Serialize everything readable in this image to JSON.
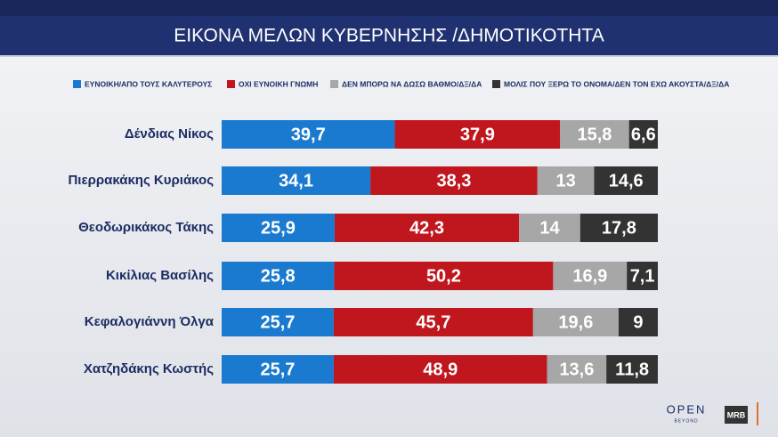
{
  "chart_data": {
    "type": "stacked-bar-horizontal",
    "title": "ΕΙΚΟΝΑ ΜΕΛΩΝ ΚΥΒΕΡΝΗΣΗΣ /ΔΗΜΟΤΙΚΟΤΗΤΑ",
    "categories": [
      "Δένδιας Νίκος",
      "Πιερρακάκης Κυριάκος",
      "Θεοδωρικάκος Τάκης",
      "Κικίλιας Βασίλης",
      "Κεφαλογιάννη Όλγα",
      "Χατζηδάκης Κωστής"
    ],
    "series": [
      {
        "name": "ΕΥΝΟΙΚΗ/ΑΠΟ ΤΟΥΣ ΚΑΛΥΤΕΡΟΥΣ",
        "color": "#1a7ad0",
        "values": [
          39.7,
          34.1,
          25.9,
          25.8,
          25.7,
          25.7
        ],
        "value_labels": [
          "39,7",
          "34,1",
          "25,9",
          "25,8",
          "25,7",
          "25,7"
        ]
      },
      {
        "name": "ΟΧΙ ΕΥΝΟΙΚΗ ΓΝΩΜΗ",
        "color": "#c0161d",
        "values": [
          37.9,
          38.3,
          42.3,
          50.2,
          45.7,
          48.9
        ],
        "value_labels": [
          "37,9",
          "38,3",
          "42,3",
          "50,2",
          "45,7",
          "48,9"
        ]
      },
      {
        "name": "ΔΕΝ ΜΠΟΡΩ ΝΑ ΔΩΣΩ ΒΑΘΜΟ/ΔΞ/ΔΑ",
        "color": "#a7a7a7",
        "values": [
          15.8,
          13,
          14,
          16.9,
          19.6,
          13.6
        ],
        "value_labels": [
          "15,8",
          "13",
          "14",
          "16,9",
          "19,6",
          "13,6"
        ]
      },
      {
        "name": "ΜΟΛΙΣ ΠΟΥ ΞΕΡΩ ΤΟ ΟΝΟΜΑ/ΔΕΝ ΤΟΝ ΕΧΩ ΑΚΟΥΣΤΑ/ΔΞ/ΔΑ",
        "color": "#333333",
        "values": [
          6.6,
          14.6,
          17.8,
          7.1,
          9,
          11.8
        ],
        "value_labels": [
          "6,6",
          "14,6",
          "17,8",
          "7,1",
          "9",
          "11,8"
        ]
      }
    ],
    "branding": [
      "OPEN",
      "BEYOND",
      "MRB"
    ]
  }
}
